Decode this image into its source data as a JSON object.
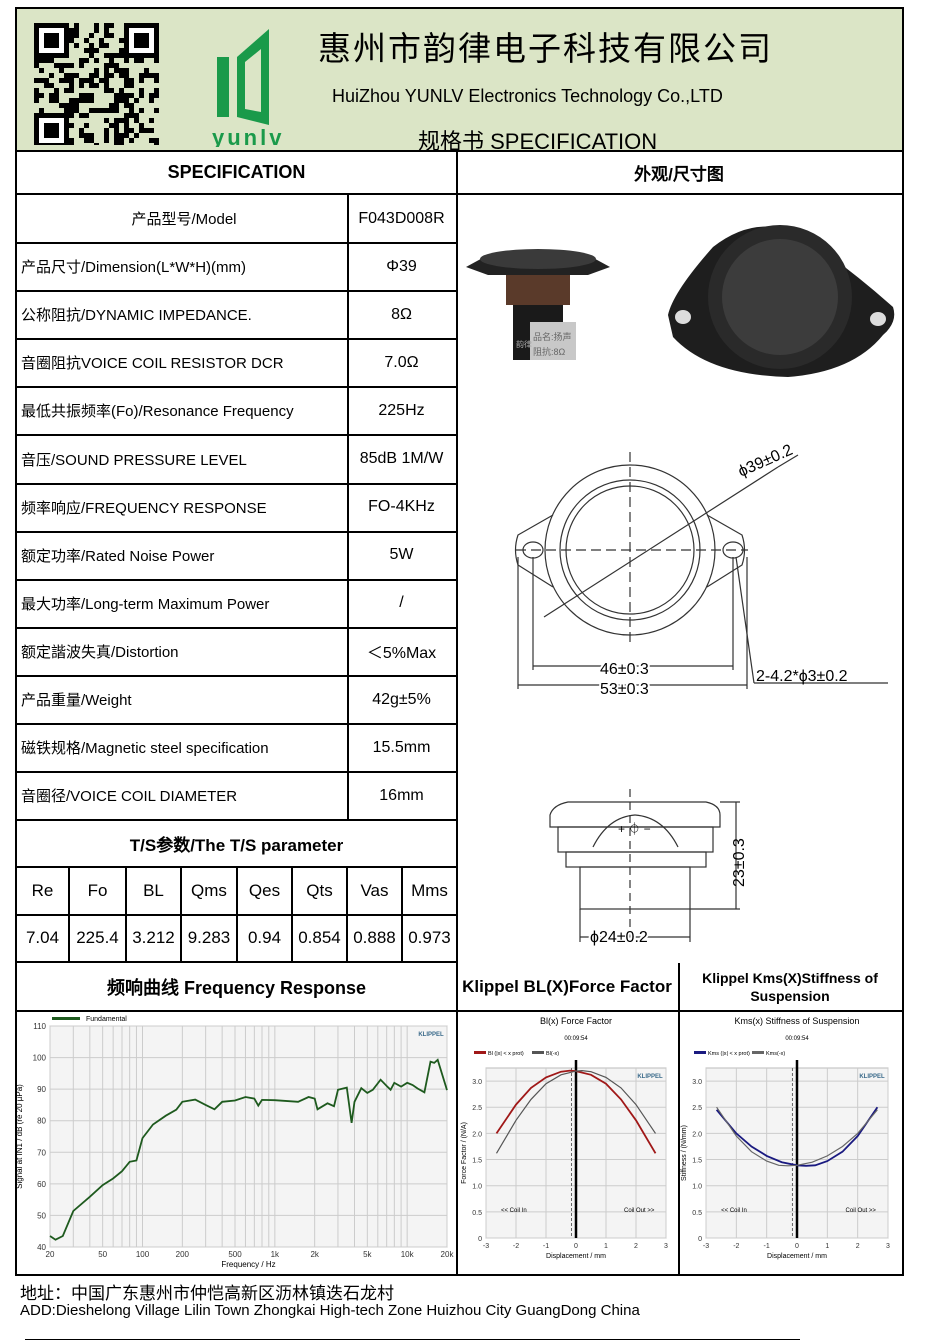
{
  "header": {
    "company_cn": "惠州市韵律电子科技有限公司",
    "company_en": "HuiZhou YUNLV Electronics Technology Co.,LTD",
    "doc_title": "规格书  SPECIFICATION",
    "logo_text": "yunlv",
    "brand_color": "#1a9a4a",
    "header_bg": "#dbe5c6"
  },
  "sections": {
    "spec": "SPECIFICATION",
    "drawing": "外观/尺寸图",
    "ts": "T/S参数/The T/S parameter",
    "fr": "频响曲线 Frequency Response",
    "bl": "Klippel BL(X)Force Factor",
    "kms": "Klippel Kms(X)Stiffness of Suspension"
  },
  "specs": [
    {
      "label": "产品型号/Model",
      "value": "F043D008R"
    },
    {
      "label": "产品尺寸/Dimension(L*W*H)(mm)",
      "value": "Φ39"
    },
    {
      "label": "公称阻抗/DYNAMIC IMPEDANCE.",
      "value": "8Ω"
    },
    {
      "label": "音圈阻抗VOICE COIL RESISTOR DCR",
      "value": "7.0Ω"
    },
    {
      "label": "最低共振频率(Fo)/Resonance Frequency",
      "value": "225Hz"
    },
    {
      "label": "音压/SOUND PRESSURE LEVEL",
      "value": "85dB 1M/W"
    },
    {
      "label": "频率响应/FREQUENCY RESPONSE",
      "value": "FO-4KHz"
    },
    {
      "label": "额定功率/Rated Noise Power",
      "value": "5W"
    },
    {
      "label": "最大功率/Long-term Maximum Power",
      "value": "/"
    },
    {
      "label": "额定諧波失真/Distortion",
      "value": "＜5%Max"
    },
    {
      "label": "产品重量/Weight",
      "value": "42g±5%"
    },
    {
      "label": "磁铁规格/Magnetic steel specification",
      "value": "15.5mm"
    },
    {
      "label": "音圈径/VOICE COIL DIAMETER",
      "value": "16mm"
    }
  ],
  "ts_params": {
    "headers": [
      "Re",
      "Fo",
      "BL",
      "Qms",
      "Qes",
      "Qts",
      "Vas",
      "Mms"
    ],
    "values": [
      "7.04",
      "225.4",
      "3.212",
      "9.283",
      "0.94",
      "0.854",
      "0.888",
      "0.973"
    ]
  },
  "drawing": {
    "photo_label1": "品名:扬声",
    "photo_label2": "阻抗:8Ω",
    "photo_brand": "韵律",
    "dim_diameter": "ϕ39±0.2",
    "dim_hole_spacing": "46±0.3",
    "dim_width": "53±0.3",
    "dim_holes": "2-4.2*ϕ3±0.2",
    "dim_height": "23±0.3",
    "dim_magnet": "ϕ24±0.2",
    "terminal_marks": "+ ⏀ −"
  },
  "chart_data": [
    {
      "type": "line",
      "title": "",
      "xlabel": "Frequency / Hz",
      "ylabel": "Signal at IN1 / dB (re 20 µPa)",
      "xscale": "log",
      "xlim": [
        20,
        20000
      ],
      "ylim": [
        40,
        110
      ],
      "grid": true,
      "legend": "top-left",
      "watermark": "KLIPPEL",
      "xticks": [
        20,
        50,
        100,
        200,
        500,
        1000,
        2000,
        5000,
        10000,
        20000
      ],
      "xtick_labels": [
        "20",
        "50",
        "100",
        "200",
        "500",
        "1k",
        "2k",
        "5k",
        "10k",
        "20k"
      ],
      "yticks": [
        40,
        50,
        60,
        70,
        80,
        90,
        100,
        110
      ],
      "series": [
        {
          "name": "Fundamental",
          "color": "#1e5a1e",
          "x": [
            20,
            22,
            25,
            30,
            40,
            50,
            60,
            70,
            80,
            90,
            100,
            120,
            150,
            180,
            200,
            250,
            300,
            350,
            400,
            500,
            600,
            700,
            750,
            800,
            1000,
            1500,
            1800,
            2000,
            2100,
            2500,
            2800,
            3000,
            3500,
            3800,
            4000,
            4500,
            5000,
            5500,
            6300,
            7000,
            7500,
            8000,
            9000,
            10000,
            11000,
            12000,
            13500,
            15000,
            16000,
            17000,
            20000
          ],
          "y": [
            43.5,
            42.3,
            43.5,
            51.4,
            55.9,
            59.6,
            61.7,
            64,
            67,
            67.4,
            74.5,
            78.8,
            81.6,
            83.5,
            86,
            86.7,
            85,
            83.6,
            86,
            86.4,
            87.5,
            87,
            84.8,
            86.6,
            86.5,
            86,
            87.5,
            87,
            83.6,
            85.5,
            84.6,
            89.8,
            90.5,
            79.3,
            86,
            90.3,
            88.8,
            89.8,
            93,
            91,
            89.8,
            92,
            90.8,
            92,
            91.3,
            90.2,
            89,
            98.7,
            98.3,
            99.3,
            89.7
          ]
        }
      ]
    },
    {
      "type": "line",
      "title": "Bl(x) Force Factor",
      "subtitle": "00:09:54",
      "xlabel": "Displacement / mm",
      "ylabel": "Force Factor / (N/A)",
      "xlim": [
        -3,
        3
      ],
      "ylim": [
        0,
        3.25
      ],
      "grid": true,
      "legend": "top-left",
      "watermark": "KLIPPEL",
      "xticks": [
        -3,
        -2,
        -1,
        0,
        1,
        2,
        3
      ],
      "yticks": [
        0,
        0.5,
        1.0,
        1.5,
        2.0,
        2.5,
        3.0
      ],
      "ytick_labels": [
        "0",
        "0.5",
        "1.0",
        "1.5",
        "2.0",
        "2.5",
        "3.0"
      ],
      "annotations": [
        "<< Coil In",
        "Coil Out >>"
      ],
      "series": [
        {
          "name": "Bl (|x| < x prot)",
          "color": "#a01818",
          "x": [
            -2.65,
            -2,
            -1.5,
            -1,
            -0.5,
            -0.2,
            0,
            0.5,
            1,
            1.5,
            2,
            2.65
          ],
          "y": [
            2.0,
            2.55,
            2.87,
            3.07,
            3.18,
            3.2,
            3.19,
            3.12,
            2.95,
            2.65,
            2.25,
            1.62
          ]
        },
        {
          "name": "Bl(-x)",
          "color": "#555555",
          "x": [
            -2.65,
            -2,
            -1.5,
            -1,
            -0.5,
            0,
            0.2,
            0.5,
            1,
            1.5,
            2,
            2.65
          ],
          "y": [
            1.62,
            2.25,
            2.65,
            2.95,
            3.12,
            3.19,
            3.2,
            3.18,
            3.07,
            2.87,
            2.55,
            2.0
          ]
        }
      ]
    },
    {
      "type": "line",
      "title": "Kms(x) Stiffness of Suspension",
      "subtitle": "00:09:54",
      "xlabel": "Displacement / mm",
      "ylabel": "Stiffness / (N/mm)",
      "xlim": [
        -3,
        3
      ],
      "ylim": [
        0,
        3.25
      ],
      "grid": true,
      "legend": "top-left",
      "watermark": "KLIPPEL",
      "xticks": [
        -3,
        -2,
        -1,
        0,
        1,
        2,
        3
      ],
      "yticks": [
        0,
        0.5,
        1.0,
        1.5,
        2.0,
        2.5,
        3.0
      ],
      "ytick_labels": [
        "0",
        "0.5",
        "1.0",
        "1.5",
        "2.0",
        "2.5",
        "3.0"
      ],
      "annotations": [
        "<< Coil In",
        "Coil Out >>"
      ],
      "series": [
        {
          "name": "Kms (|x| < x prot)",
          "color": "#1a1a80",
          "x": [
            -2.65,
            -2,
            -1.5,
            -1,
            -0.5,
            0,
            0.3,
            0.6,
            1,
            1.5,
            2,
            2.65
          ],
          "y": [
            2.45,
            2.0,
            1.75,
            1.57,
            1.45,
            1.39,
            1.38,
            1.39,
            1.47,
            1.65,
            1.95,
            2.5
          ]
        },
        {
          "name": "Kms(-x)",
          "color": "#666666",
          "x": [
            -2.65,
            -2,
            -1.5,
            -1,
            -0.6,
            -0.3,
            0,
            0.5,
            1,
            1.5,
            2,
            2.65
          ],
          "y": [
            2.5,
            1.95,
            1.65,
            1.47,
            1.39,
            1.38,
            1.39,
            1.45,
            1.57,
            1.75,
            2.0,
            2.45
          ]
        }
      ]
    }
  ],
  "footer": {
    "address_cn": "地址：中国广东惠州市仲恺高新区沥林镇迭石龙村",
    "address_en": "ADD:Dieshelong Village Lilin  Town Zhongkai High-tech Zone Huizhou City GuangDong China"
  }
}
